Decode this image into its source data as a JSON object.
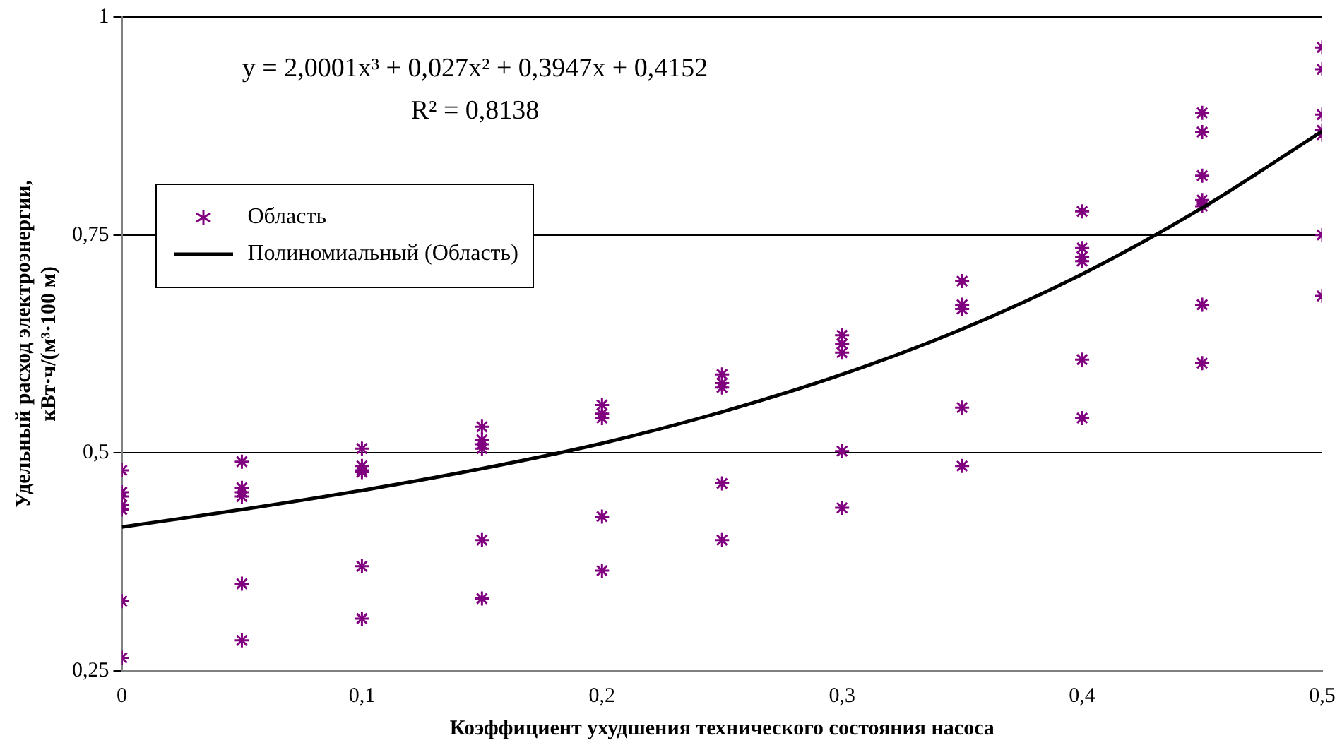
{
  "chart_data": {
    "type": "scatter",
    "xlabel": "Коэффициент ухудшения технического состояния насоса",
    "ylabel": "Удельный расход электроэнергии, кВт·ч/(м³·100 м)",
    "annotations": [
      "y = 2,0001x³ + 0,027x² + 0,3947x + 0,4152",
      "R² = 0,8138"
    ],
    "xlim": [
      0,
      0.5
    ],
    "xticks": [
      0,
      {
        "value": 0.1,
        "label": "0,1"
      },
      {
        "value": 0.2,
        "label": "0,2"
      },
      {
        "value": 0.3,
        "label": "0,3"
      },
      {
        "value": 0.4,
        "label": "0,4"
      },
      {
        "value": 0.5,
        "label": "0,5"
      }
    ],
    "ylim": [
      0.25,
      1
    ],
    "yticks": [
      {
        "value": 0.25,
        "label": "0,25"
      },
      {
        "value": 0.5,
        "label": "0,5"
      },
      {
        "value": 0.75,
        "label": "0,75"
      },
      1
    ],
    "grid": "y",
    "legend": "top left",
    "marker": "cross",
    "series": [
      {
        "name": "Область",
        "type": "scatter",
        "color": "#800080",
        "x": [
          0,
          0,
          0,
          0,
          0,
          0,
          0,
          0.05,
          0.05,
          0.05,
          0.05,
          0.05,
          0.05,
          0.1,
          0.1,
          0.1,
          0.1,
          0.1,
          0.1,
          0.15,
          0.15,
          0.15,
          0.15,
          0.15,
          0.15,
          0.2,
          0.2,
          0.2,
          0.2,
          0.2,
          0.25,
          0.25,
          0.25,
          0.25,
          0.25,
          0.3,
          0.3,
          0.3,
          0.3,
          0.3,
          0.35,
          0.35,
          0.35,
          0.35,
          0.35,
          0.4,
          0.4,
          0.4,
          0.4,
          0.4,
          0.4,
          0.45,
          0.45,
          0.45,
          0.45,
          0.45,
          0.45,
          0.45,
          0.5,
          0.5,
          0.5,
          0.5,
          0.5,
          0.5,
          0.5
        ],
        "values": [
          0.48,
          0.455,
          0.45,
          0.44,
          0.435,
          0.33,
          0.265,
          0.49,
          0.46,
          0.455,
          0.45,
          0.35,
          0.285,
          0.505,
          0.485,
          0.48,
          0.478,
          0.37,
          0.31,
          0.53,
          0.515,
          0.51,
          0.505,
          0.4,
          0.333,
          0.555,
          0.545,
          0.54,
          0.427,
          0.365,
          0.59,
          0.58,
          0.575,
          0.465,
          0.4,
          0.635,
          0.625,
          0.615,
          0.502,
          0.437,
          0.697,
          0.67,
          0.665,
          0.552,
          0.485,
          0.777,
          0.735,
          0.725,
          0.72,
          0.607,
          0.54,
          0.89,
          0.868,
          0.818,
          0.79,
          0.783,
          0.67,
          0.603,
          0.965,
          0.94,
          0.888,
          0.87,
          0.865,
          0.75,
          0.68
        ]
      },
      {
        "name": "Полиномиальный (Область)",
        "type": "line",
        "color": "#000000",
        "marker": "none",
        "line_style": "solid",
        "x": [
          0,
          0.05,
          0.1,
          0.15,
          0.2,
          0.25,
          0.3,
          0.35,
          0.4,
          0.45,
          0.5
        ],
        "values": [
          0.415,
          0.435,
          0.457,
          0.482,
          0.511,
          0.547,
          0.59,
          0.642,
          0.705,
          0.781,
          0.869
        ]
      }
    ]
  }
}
